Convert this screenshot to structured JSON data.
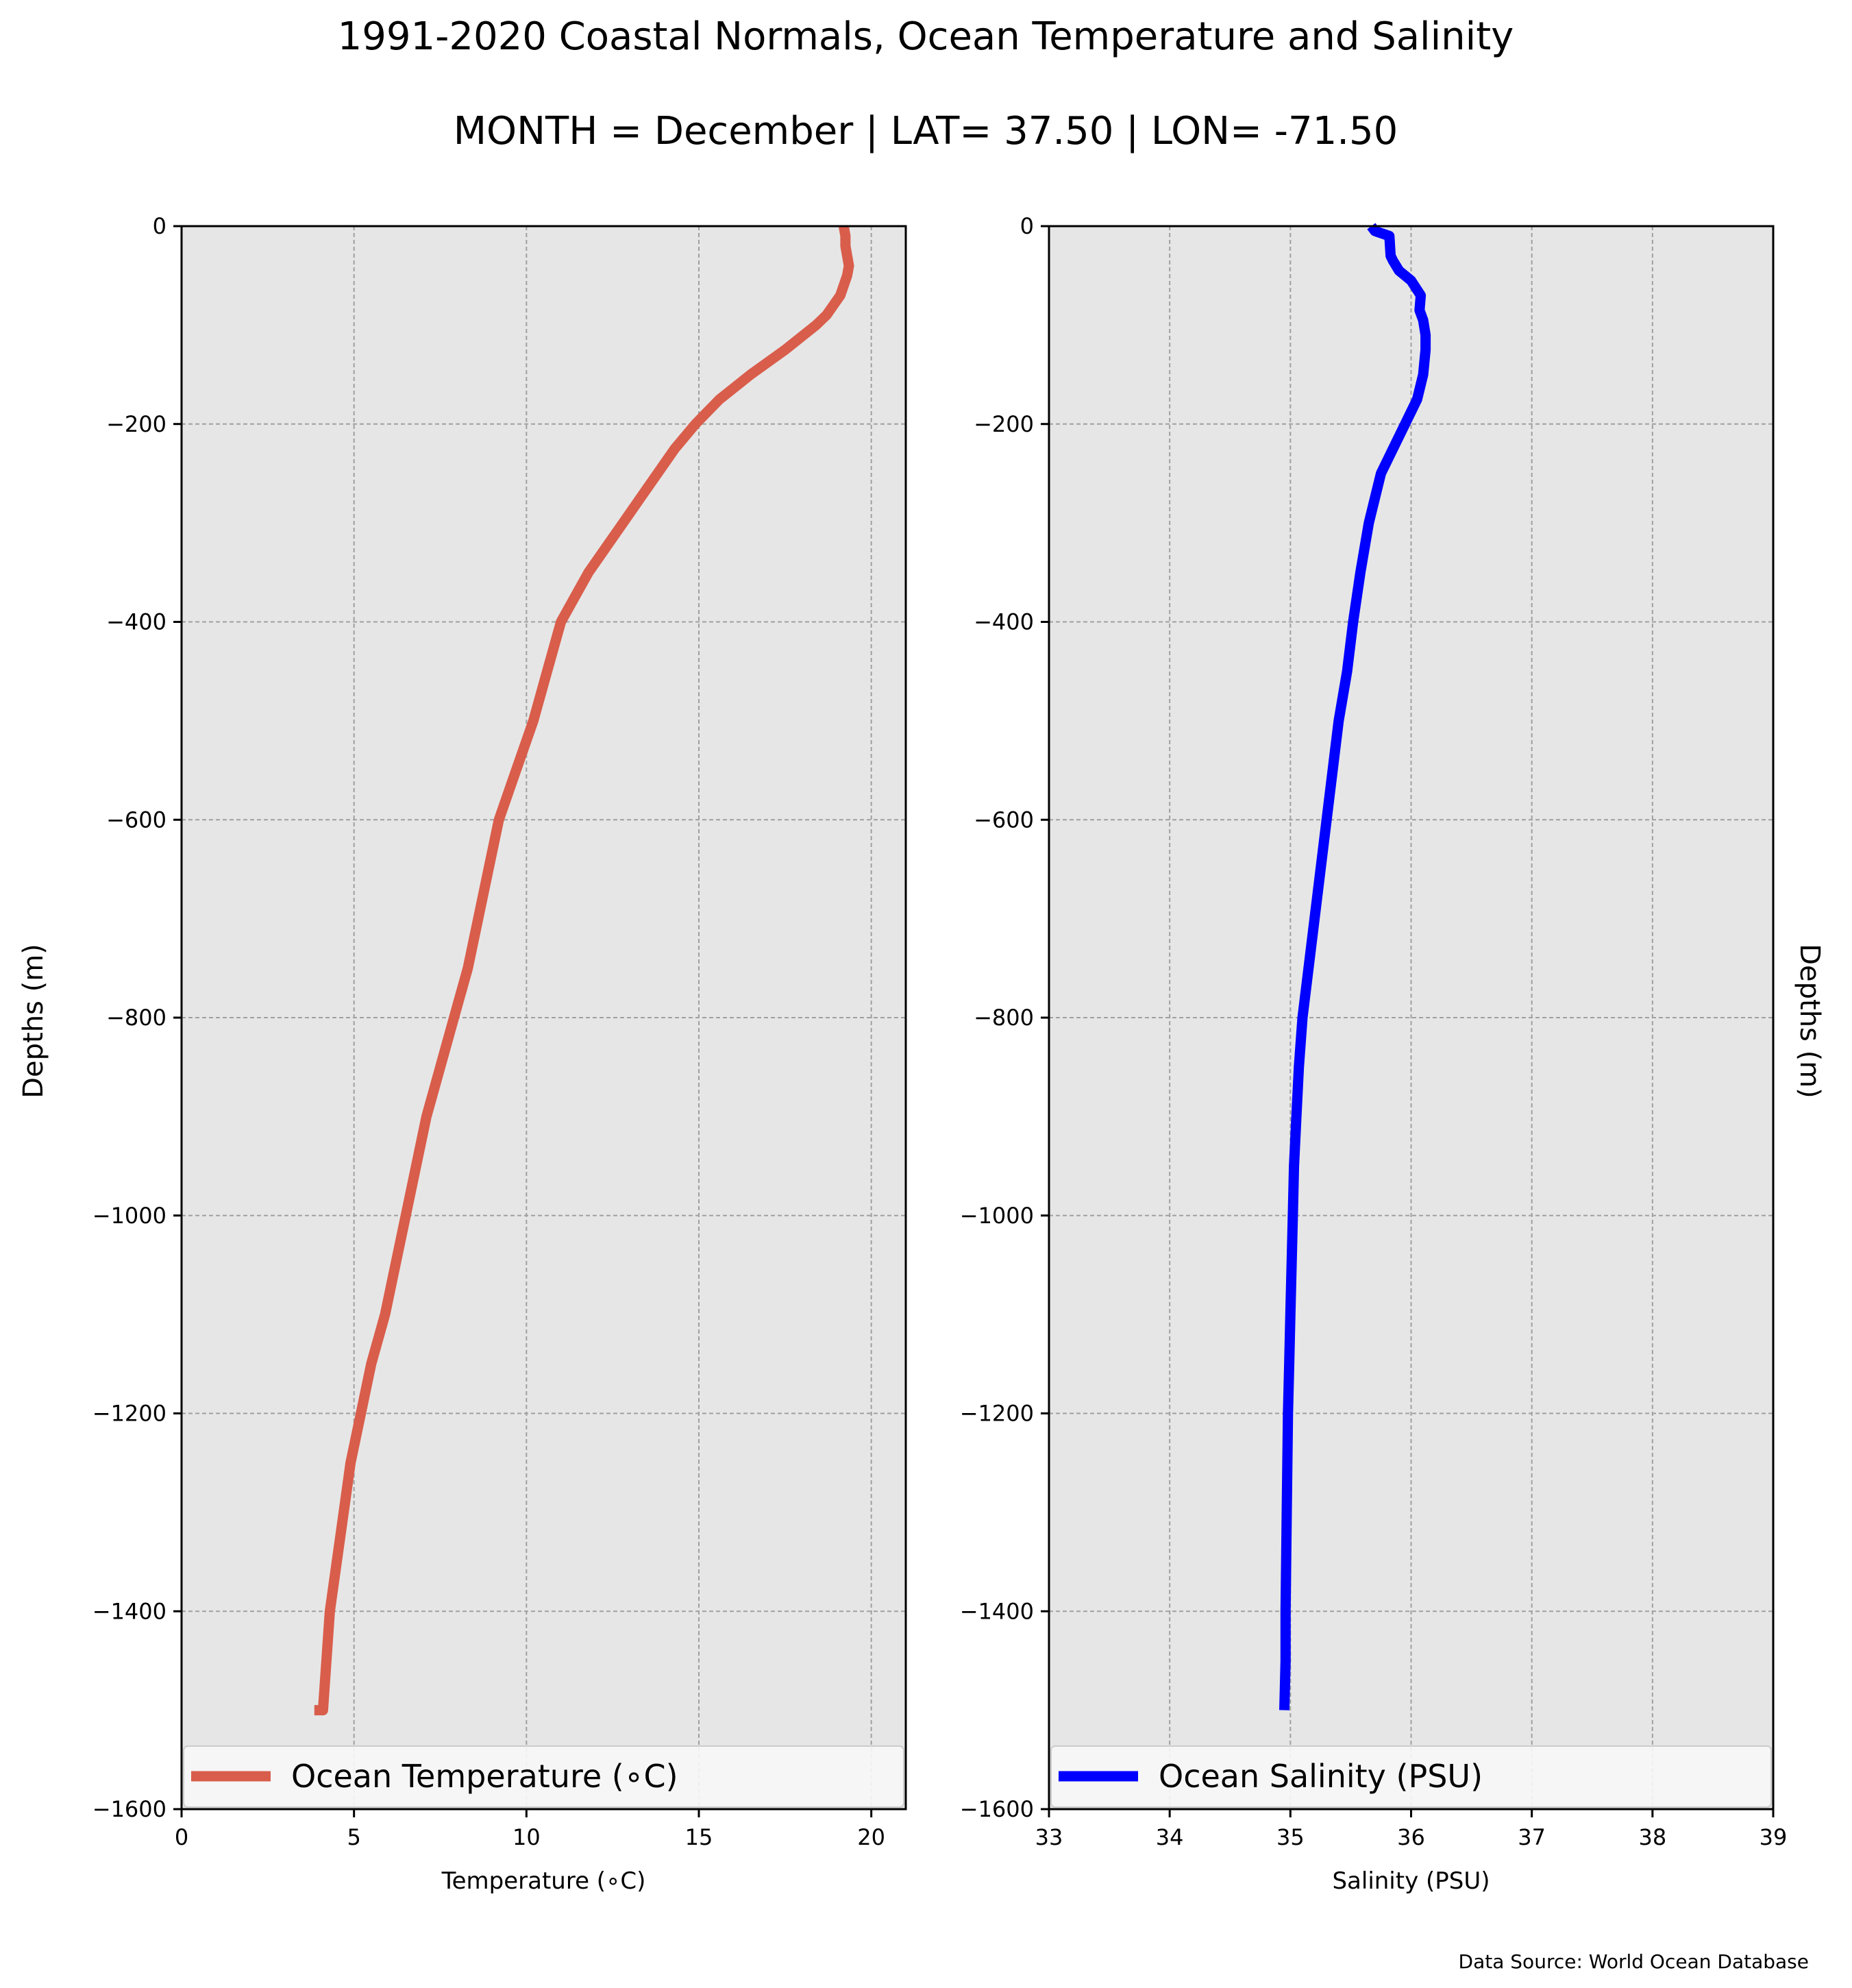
{
  "title": "1991-2020 Coastal Normals, Ocean Temperature and Salinity",
  "subtitle": "MONTH = December | LAT= 37.50 | LON= -71.50",
  "source": "Data Source: World Ocean Database",
  "colors": {
    "temperature": "#d95d4b",
    "salinity": "#0000ff",
    "plot_bg": "#e6e6e6",
    "grid": "#a0a0a0"
  },
  "chart_data": [
    {
      "type": "line",
      "xlabel": "Temperature ($^\\circ$C)",
      "xlabel_display": "Temperature (∘C)",
      "ylabel": "Depths (m)",
      "xlim": [
        0,
        21
      ],
      "ylim": [
        -1600,
        0
      ],
      "xticks": [
        0,
        5,
        10,
        15,
        20
      ],
      "yticks": [
        0,
        -200,
        -400,
        -600,
        -800,
        -1000,
        -1200,
        -1400,
        -1600
      ],
      "ytick_labels": [
        "0",
        "−200",
        "−400",
        "−600",
        "−800",
        "−1000",
        "−1200",
        "−1400",
        "−1600"
      ],
      "grid": true,
      "legend_position": "lower left",
      "series": [
        {
          "name": "Ocean Temperature (∘C)",
          "x": [
            19.2,
            19.25,
            19.25,
            19.3,
            19.35,
            19.3,
            19.1,
            18.9,
            18.7,
            18.4,
            17.5,
            16.5,
            15.6,
            14.9,
            14.3,
            13.8,
            13.3,
            12.8,
            12.3,
            11.8,
            11.4,
            11.0,
            10.6,
            10.2,
            9.7,
            9.2,
            8.9,
            8.6,
            8.3,
            7.9,
            7.5,
            7.1,
            6.8,
            6.5,
            6.2,
            5.9,
            5.5,
            5.2,
            4.9,
            4.7,
            4.5,
            4.3,
            4.2,
            4.1,
            4.05,
            4.0,
            3.95,
            3.85
          ],
          "y": [
            0,
            -10,
            -20,
            -30,
            -40,
            -50,
            -70,
            -80,
            -90,
            -100,
            -125,
            -150,
            -175,
            -200,
            -225,
            -250,
            -275,
            -300,
            -325,
            -350,
            -375,
            -400,
            -450,
            -500,
            -550,
            -600,
            -650,
            -700,
            -750,
            -800,
            -850,
            -900,
            -950,
            -1000,
            -1050,
            -1100,
            -1150,
            -1200,
            -1250,
            -1300,
            -1350,
            -1400,
            -1450,
            -1500,
            -1500,
            -1500,
            -1500,
            -1500
          ]
        }
      ]
    },
    {
      "type": "line",
      "xlabel": "Salinity (PSU)",
      "ylabel": "Depths (m)",
      "xlim": [
        33,
        39
      ],
      "ylim": [
        -1600,
        0
      ],
      "xticks": [
        33,
        34,
        35,
        36,
        37,
        38,
        39
      ],
      "yticks": [
        0,
        -200,
        -400,
        -600,
        -800,
        -1000,
        -1200,
        -1400,
        -1600
      ],
      "ytick_labels": [
        "0",
        "−200",
        "−400",
        "−600",
        "−800",
        "−1000",
        "−1200",
        "−1400",
        "−1600"
      ],
      "grid": true,
      "legend_position": "lower left",
      "series": [
        {
          "name": "Ocean Salinity (PSU)",
          "x": [
            35.67,
            35.7,
            35.82,
            35.83,
            35.85,
            35.9,
            35.95,
            36.0,
            36.08,
            36.07,
            36.1,
            36.12,
            36.12,
            36.1,
            36.05,
            35.95,
            35.85,
            35.75,
            35.65,
            35.58,
            35.52,
            35.47,
            35.4,
            35.35,
            35.3,
            35.25,
            35.2,
            35.15,
            35.1,
            35.07,
            35.05,
            35.03,
            35.02,
            35.01,
            35.0,
            34.99,
            34.98,
            34.97,
            34.96,
            34.96,
            34.95
          ],
          "y": [
            0,
            -5,
            -10,
            -30,
            -35,
            -45,
            -50,
            -55,
            -70,
            -85,
            -95,
            -110,
            -125,
            -150,
            -175,
            -200,
            -225,
            -250,
            -300,
            -350,
            -400,
            -450,
            -500,
            -550,
            -600,
            -650,
            -700,
            -750,
            -800,
            -850,
            -900,
            -950,
            -1000,
            -1050,
            -1100,
            -1150,
            -1200,
            -1300,
            -1400,
            -1450,
            -1500
          ]
        }
      ]
    }
  ]
}
